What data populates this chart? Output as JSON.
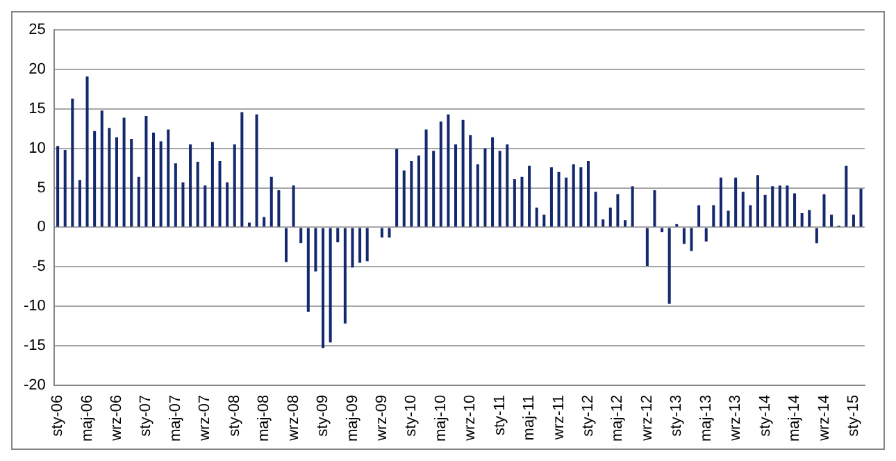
{
  "chart_data": {
    "type": "bar",
    "categories": [
      "sty-06",
      null,
      null,
      null,
      "maj-06",
      null,
      null,
      null,
      "wrz-06",
      null,
      null,
      null,
      "sty-07",
      null,
      null,
      null,
      "maj-07",
      null,
      null,
      null,
      "wrz-07",
      null,
      null,
      null,
      "sty-08",
      null,
      null,
      null,
      "maj-08",
      null,
      null,
      null,
      "wrz-08",
      null,
      null,
      null,
      "sty-09",
      null,
      null,
      null,
      "maj-09",
      null,
      null,
      null,
      "wrz-09",
      null,
      null,
      null,
      "sty-10",
      null,
      null,
      null,
      "maj-10",
      null,
      null,
      null,
      "wrz-10",
      null,
      null,
      null,
      "sty-11",
      null,
      null,
      null,
      "maj-11",
      null,
      null,
      null,
      "wrz-11",
      null,
      null,
      null,
      "sty-12",
      null,
      null,
      null,
      "maj-12",
      null,
      null,
      null,
      "wrz-12",
      null,
      null,
      null,
      "sty-13",
      null,
      null,
      null,
      "maj-13",
      null,
      null,
      null,
      "wrz-13",
      null,
      null,
      null,
      "sty-14",
      null,
      null,
      null,
      "maj-14",
      null,
      null,
      null,
      "wrz-14",
      null,
      null,
      null,
      "sty-15",
      null
    ],
    "values": [
      10.3,
      9.8,
      16.3,
      6.0,
      19.1,
      12.2,
      14.8,
      12.6,
      11.4,
      13.9,
      11.2,
      6.4,
      14.1,
      12.0,
      10.9,
      12.4,
      8.1,
      5.7,
      10.5,
      8.3,
      5.3,
      10.8,
      8.4,
      5.7,
      10.5,
      14.6,
      0.6,
      14.3,
      1.3,
      6.4,
      4.7,
      -4.4,
      5.3,
      -2.0,
      -10.7,
      -5.6,
      -15.3,
      -14.6,
      -1.9,
      -12.2,
      -5.1,
      -4.5,
      -4.3,
      0,
      -1.3,
      -1.3,
      9.9,
      7.2,
      8.4,
      9.1,
      12.4,
      9.7,
      13.4,
      14.3,
      10.5,
      13.6,
      11.7,
      8.0,
      10.0,
      11.4,
      9.7,
      10.5,
      6.1,
      6.4,
      7.8,
      2.5,
      1.6,
      7.6,
      7.0,
      6.3,
      8.0,
      7.6,
      8.4,
      4.5,
      1.0,
      2.5,
      4.2,
      0.9,
      5.2,
      0,
      -4.9,
      4.7,
      -0.6,
      -9.7,
      0.4,
      -2.1,
      -3.0,
      2.8,
      -1.8,
      2.8,
      6.3,
      2.1,
      6.3,
      4.5,
      2.8,
      6.6,
      4.1,
      5.2,
      5.3,
      5.3,
      4.3,
      1.8,
      2.2,
      -2.0,
      4.2,
      1.6,
      0.2,
      7.8,
      1.6,
      4.9
    ],
    "color": "#14286e",
    "ylim": [
      -20,
      25
    ],
    "yticks": [
      -20,
      -15,
      -10,
      -5,
      0,
      5,
      10,
      15,
      20,
      25
    ],
    "grid": "y",
    "legend": false
  }
}
